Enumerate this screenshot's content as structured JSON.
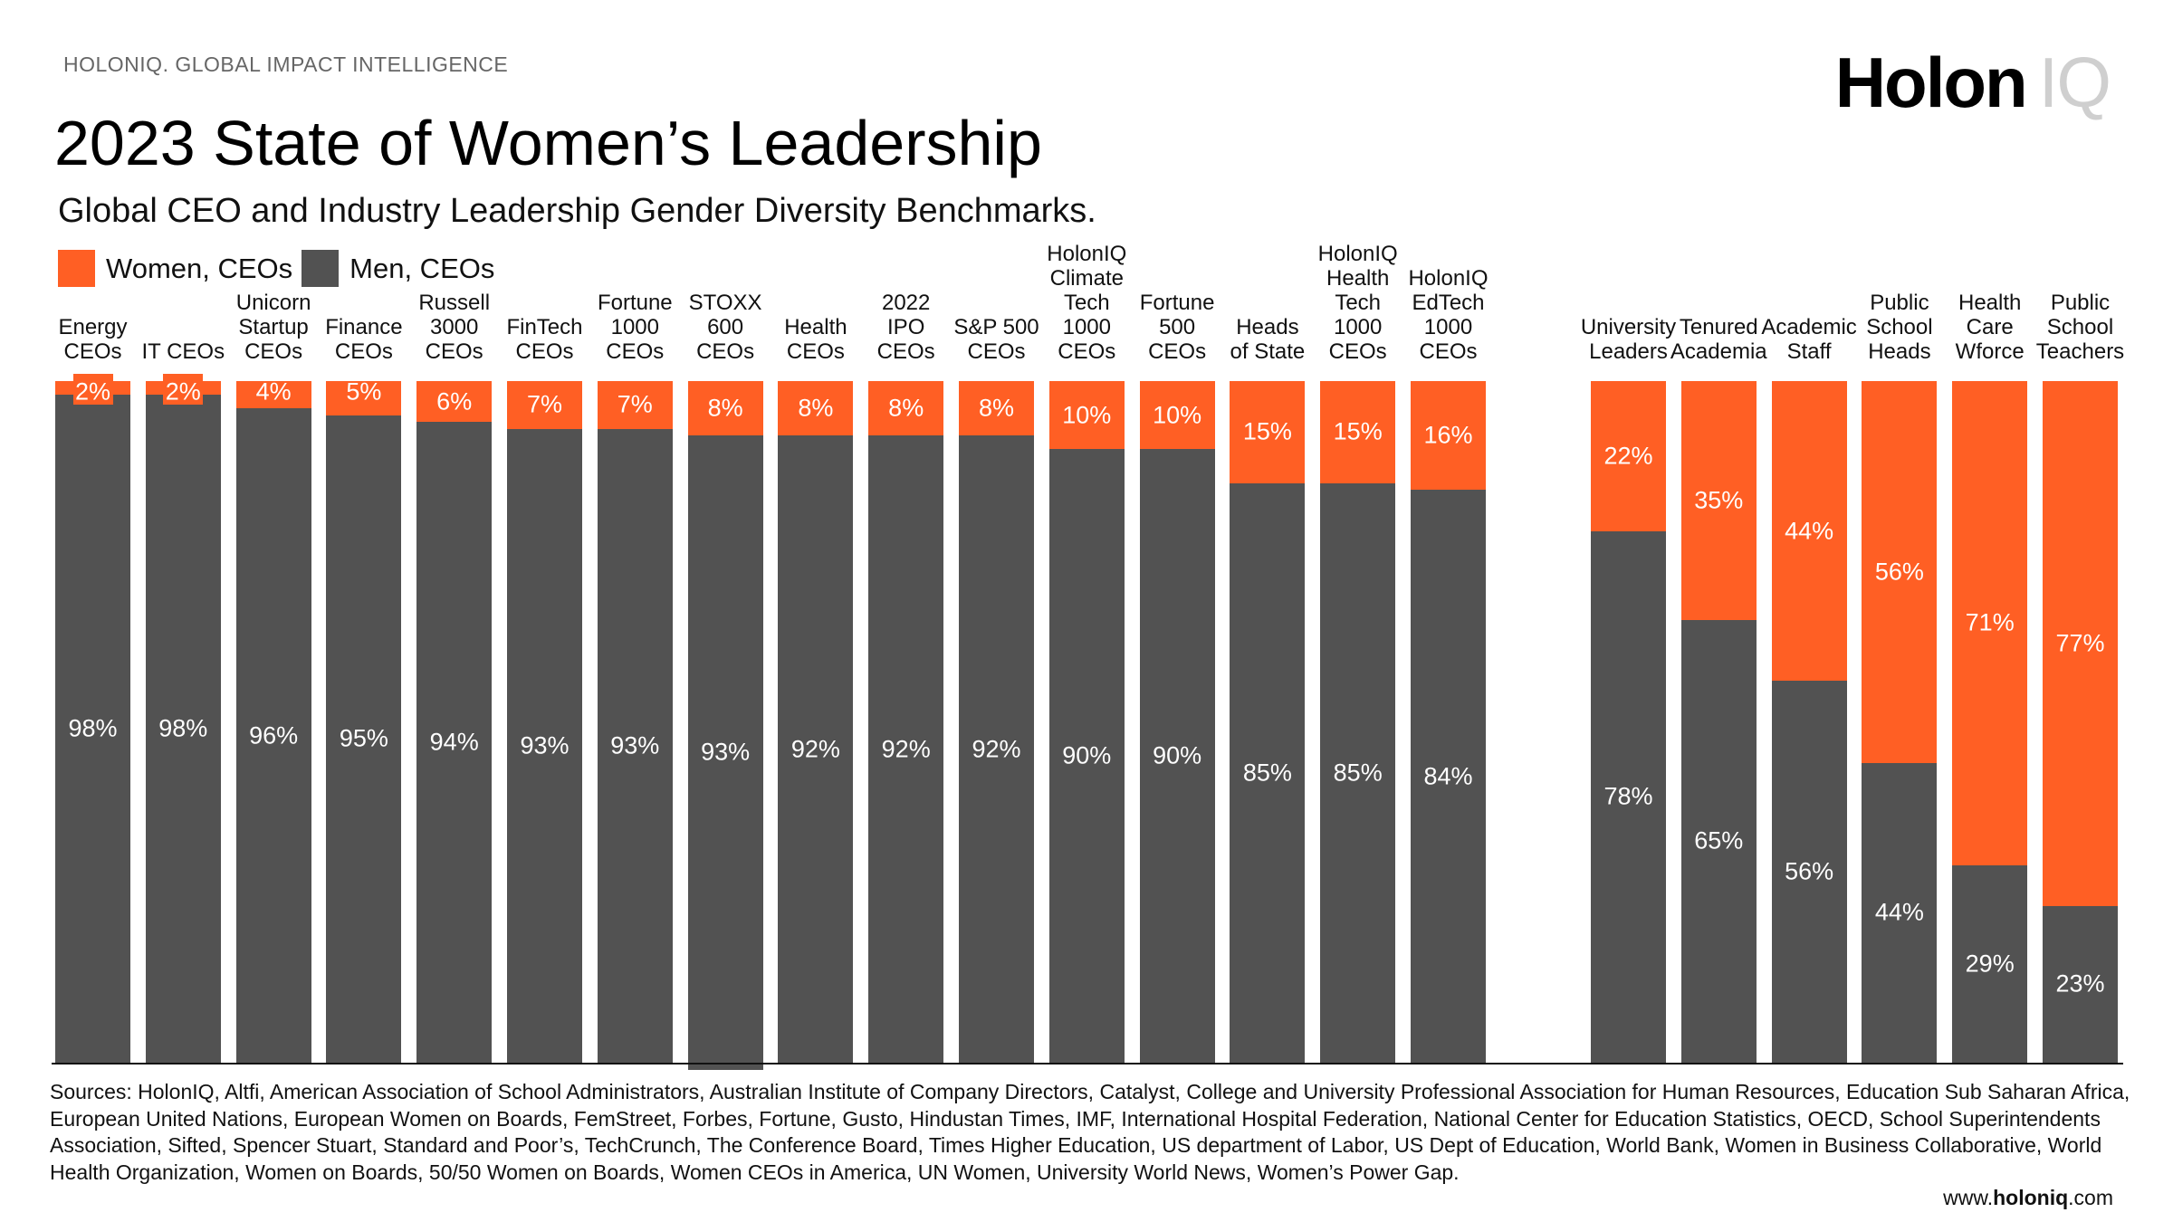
{
  "header": {
    "eyebrow": "HOLONIQ. GLOBAL IMPACT INTELLIGENCE",
    "logo_text": "Holon IQ"
  },
  "colors": {
    "women": "#FF5F24",
    "men": "#525252"
  },
  "chart_data": {
    "type": "bar",
    "stacked": true,
    "title": "2023 State of Women’s Leadership",
    "subtitle": "Global CEO and Industry Leadership Gender Diversity Benchmarks.",
    "legend": {
      "placement": "top-left",
      "entries": [
        "Women, CEOs",
        "Men, CEOs"
      ]
    },
    "ylim": [
      0,
      100
    ],
    "groups": [
      {
        "categories": [
          "Energy\nCEOs",
          "IT CEOs",
          "Unicorn\nStartup\nCEOs",
          "Finance\nCEOs",
          "Russell\n3000\nCEOs",
          "FinTech\nCEOs",
          "Fortune\n1000\nCEOs",
          "STOXX\n600\nCEOs",
          "Health\nCEOs",
          "2022\nIPO\nCEOs",
          "S&P 500\nCEOs",
          "HolonIQ\nClimate\nTech\n1000\nCEOs",
          "Fortune\n500\nCEOs",
          "Heads\nof State",
          "HolonIQ\nHealth\nTech\n1000\nCEOs",
          "HolonIQ\nEdTech\n1000\nCEOs"
        ]
      },
      {
        "categories": [
          "University\nLeaders",
          "Tenured\nAcademia",
          "Academic\nStaff",
          "Public\nSchool\nHeads",
          "Health\nCare\nWforce",
          "Public\nSchool\nTeachers"
        ]
      }
    ],
    "series": [
      {
        "name": "Women, CEOs",
        "values": [
          [
            2,
            2,
            4,
            5,
            6,
            7,
            7,
            8,
            8,
            8,
            8,
            10,
            10,
            15,
            15,
            16
          ],
          [
            22,
            35,
            44,
            56,
            71,
            77
          ]
        ],
        "labels": [
          [
            "2%",
            "2%",
            "4%",
            "5%",
            "6%",
            "7%",
            "7%",
            "8%",
            "8%",
            "8%",
            "8%",
            "10%",
            "10%",
            "15%",
            "15%",
            "16%"
          ],
          [
            "22%",
            "35%",
            "44%",
            "56%",
            "71%",
            "77%"
          ]
        ]
      },
      {
        "name": "Men, CEOs",
        "values": [
          [
            98,
            98,
            96,
            95,
            94,
            93,
            93,
            93,
            92,
            92,
            92,
            90,
            90,
            85,
            85,
            84
          ],
          [
            78,
            65,
            56,
            44,
            29,
            23
          ]
        ],
        "labels": [
          [
            "98%",
            "98%",
            "96%",
            "95%",
            "94%",
            "93%",
            "93%",
            "93%",
            "92%",
            "92%",
            "92%",
            "90%",
            "90%",
            "85%",
            "85%",
            "84%"
          ],
          [
            "78%",
            "65%",
            "56%",
            "44%",
            "29%",
            "23%"
          ]
        ]
      }
    ]
  },
  "footer": {
    "sources": "Sources: HolonIQ, Altfi, American Association of School Administrators, Australian Institute of Company Directors, Catalyst, College and University Professional Association for Human Resources, Education Sub Saharan Africa, European United Nations, European Women on Boards, FemStreet, Forbes, Fortune, Gusto, Hindustan Times, IMF, International Hospital Federation, National Center for Education Statistics, OECD, School Superintendents Association, Sifted, Spencer Stuart, Standard and Poor’s, TechCrunch, The Conference Board, Times Higher Education, US department of Labor, US Dept of Education, World Bank, Women in Business Collaborative, World Health Organization, Women on Boards, 50/50 Women on Boards, Women CEOs in America, UN Women, University World News, Women’s Power Gap.",
    "site_prefix": "www.",
    "site_bold": "holoniq",
    "site_suffix": ".com"
  }
}
